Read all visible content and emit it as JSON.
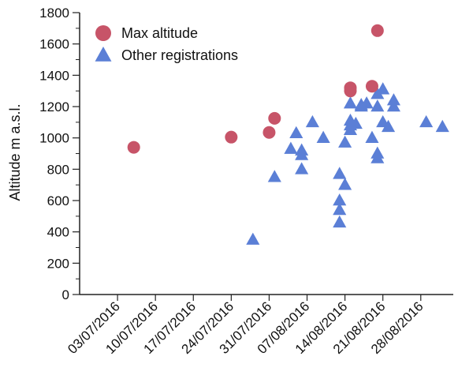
{
  "chart_data": {
    "type": "scatter",
    "ylabel": "Altitude m a.s.l.",
    "xlabel": "",
    "ylim": [
      0,
      1800
    ],
    "yticks": [
      0,
      200,
      400,
      600,
      800,
      1000,
      1200,
      1400,
      1600,
      1800
    ],
    "xlim": [
      "2016-06-26",
      "2016-09-03"
    ],
    "xtick_labels": [
      "03/07/2016",
      "10/07/2016",
      "17/07/2016",
      "24/07/2016",
      "31/07/2016",
      "07/08/2016",
      "14/08/2016",
      "21/08/2016",
      "28/08/2016"
    ],
    "xtick_dates": [
      "2016-07-03",
      "2016-07-10",
      "2016-07-17",
      "2016-07-24",
      "2016-07-31",
      "2016-08-07",
      "2016-08-14",
      "2016-08-21",
      "2016-08-28"
    ],
    "legend_position": "top-left",
    "series": [
      {
        "name": "Max altitude",
        "marker": "circle",
        "color": "#c75468",
        "points": [
          {
            "x": "2016-07-06",
            "y": 940
          },
          {
            "x": "2016-07-24",
            "y": 1005
          },
          {
            "x": "2016-07-31",
            "y": 1035
          },
          {
            "x": "2016-08-01",
            "y": 1125
          },
          {
            "x": "2016-08-15",
            "y": 1320
          },
          {
            "x": "2016-08-15",
            "y": 1300
          },
          {
            "x": "2016-08-19",
            "y": 1330
          },
          {
            "x": "2016-08-20",
            "y": 1685
          }
        ]
      },
      {
        "name": "Other registrations",
        "marker": "triangle",
        "color": "#5b7fd6",
        "points": [
          {
            "x": "2016-07-28",
            "y": 350
          },
          {
            "x": "2016-08-01",
            "y": 750
          },
          {
            "x": "2016-08-04",
            "y": 930
          },
          {
            "x": "2016-08-05",
            "y": 1030
          },
          {
            "x": "2016-08-06",
            "y": 920
          },
          {
            "x": "2016-08-06",
            "y": 890
          },
          {
            "x": "2016-08-06",
            "y": 800
          },
          {
            "x": "2016-08-08",
            "y": 1100
          },
          {
            "x": "2016-08-10",
            "y": 1000
          },
          {
            "x": "2016-08-13",
            "y": 770
          },
          {
            "x": "2016-08-13",
            "y": 600
          },
          {
            "x": "2016-08-13",
            "y": 540
          },
          {
            "x": "2016-08-13",
            "y": 460
          },
          {
            "x": "2016-08-14",
            "y": 700
          },
          {
            "x": "2016-08-14",
            "y": 970
          },
          {
            "x": "2016-08-15",
            "y": 1050
          },
          {
            "x": "2016-08-15",
            "y": 1080
          },
          {
            "x": "2016-08-15",
            "y": 1110
          },
          {
            "x": "2016-08-15",
            "y": 1220
          },
          {
            "x": "2016-08-16",
            "y": 1090
          },
          {
            "x": "2016-08-17",
            "y": 1200
          },
          {
            "x": "2016-08-17",
            "y": 1210
          },
          {
            "x": "2016-08-18",
            "y": 1220
          },
          {
            "x": "2016-08-19",
            "y": 1000
          },
          {
            "x": "2016-08-20",
            "y": 1280
          },
          {
            "x": "2016-08-20",
            "y": 1200
          },
          {
            "x": "2016-08-20",
            "y": 900
          },
          {
            "x": "2016-08-20",
            "y": 870
          },
          {
            "x": "2016-08-21",
            "y": 1310
          },
          {
            "x": "2016-08-21",
            "y": 1100
          },
          {
            "x": "2016-08-22",
            "y": 1070
          },
          {
            "x": "2016-08-23",
            "y": 1240
          },
          {
            "x": "2016-08-23",
            "y": 1200
          },
          {
            "x": "2016-08-29",
            "y": 1100
          },
          {
            "x": "2016-09-01",
            "y": 1070
          }
        ]
      }
    ]
  }
}
